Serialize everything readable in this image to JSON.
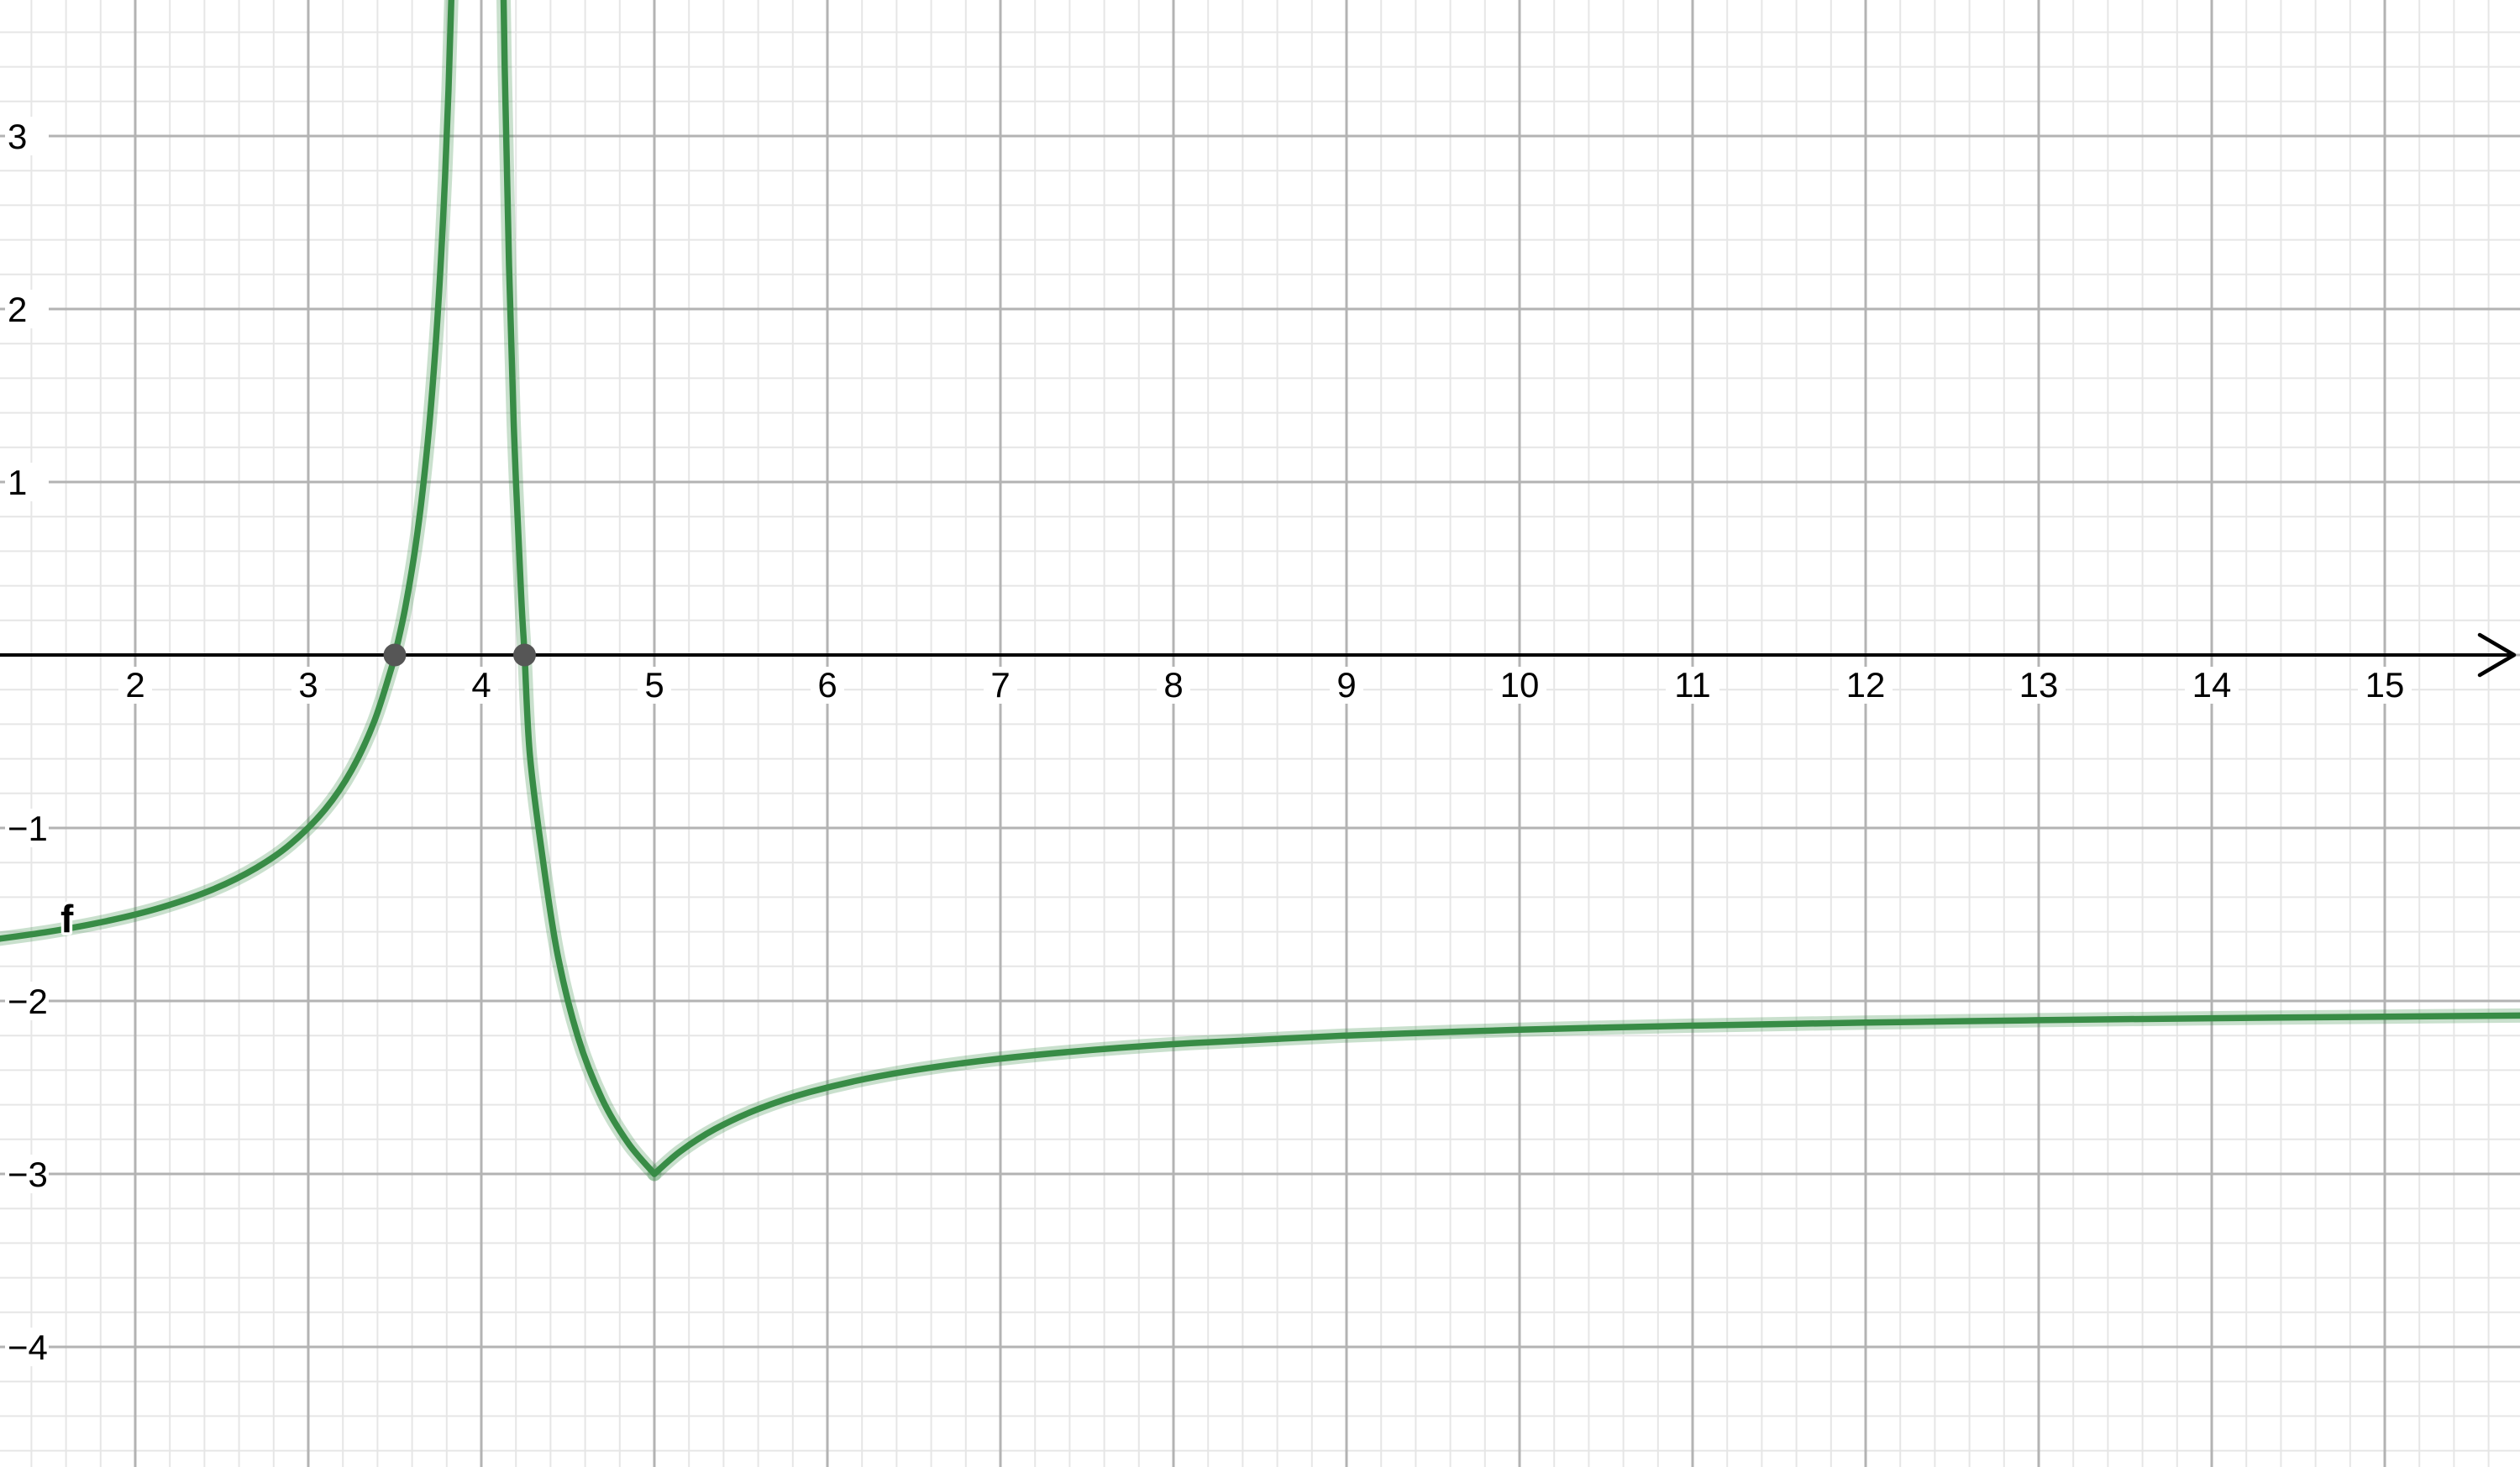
{
  "app": {
    "view_name": "graphics-view"
  },
  "chart_data": {
    "type": "line",
    "title": "",
    "function_label": "f",
    "x_range": [
      1.21845,
      15.78155
    ],
    "y_range": [
      -4.69417,
      3.78641
    ],
    "grid": {
      "minor_step": 0.2,
      "major_step": 1,
      "visible": true
    },
    "x_ticks": [
      {
        "value": 2,
        "label": "2"
      },
      {
        "value": 3,
        "label": "3"
      },
      {
        "value": 4,
        "label": "4"
      },
      {
        "value": 5,
        "label": "5"
      },
      {
        "value": 6,
        "label": "6"
      },
      {
        "value": 7,
        "label": "7"
      },
      {
        "value": 8,
        "label": "8"
      },
      {
        "value": 9,
        "label": "9"
      },
      {
        "value": 10,
        "label": "10"
      },
      {
        "value": 11,
        "label": "11"
      },
      {
        "value": 12,
        "label": "12"
      },
      {
        "value": 13,
        "label": "13"
      },
      {
        "value": 14,
        "label": "14"
      },
      {
        "value": 15,
        "label": "15"
      }
    ],
    "y_ticks": [
      {
        "value": 3,
        "label": "3"
      },
      {
        "value": 2,
        "label": "2"
      },
      {
        "value": 1,
        "label": "1"
      },
      {
        "value": -1,
        "label": "−1"
      },
      {
        "value": -2,
        "label": "−2"
      },
      {
        "value": -3,
        "label": "−3"
      },
      {
        "value": -4,
        "label": "−4"
      }
    ],
    "features": {
      "vertical_asymptote_x": 4,
      "cusp_point": [
        5,
        -3
      ],
      "horizontal_asymptote_y": -2
    },
    "marked_points": [
      {
        "x": 3.5,
        "y": 0
      },
      {
        "x": 4.25,
        "y": 0
      }
    ],
    "label_anchor": {
      "x": 1.568,
      "y": -1.602
    },
    "branches": [
      [
        [
          1.15,
          -1.6491
        ],
        [
          1.5,
          -1.6
        ],
        [
          1.85,
          -1.5349
        ],
        [
          2.15,
          -1.4595
        ],
        [
          2.45,
          -1.3548
        ],
        [
          2.7,
          -1.2308
        ],
        [
          2.9,
          -1.0909
        ],
        [
          3.1,
          -0.8889
        ],
        [
          3.25,
          -0.6667
        ],
        [
          3.38,
          -0.3871
        ],
        [
          3.48,
          -0.0769
        ],
        [
          3.5,
          0
        ],
        [
          3.56,
          0.2727
        ],
        [
          3.63,
          0.7027
        ],
        [
          3.69,
          1.2258
        ],
        [
          3.74,
          1.8462
        ],
        [
          3.78,
          2.5455
        ],
        [
          3.81,
          3.2632
        ],
        [
          3.84,
          4.25
        ]
      ],
      [
        [
          4.115,
          4.6957
        ],
        [
          4.135,
          3.4074
        ],
        [
          4.16,
          2.25
        ],
        [
          4.19,
          1.2632
        ],
        [
          4.23,
          0.3478
        ],
        [
          4.25,
          0
        ],
        [
          4.28,
          -0.5714
        ],
        [
          4.35,
          -1.1429
        ],
        [
          4.44,
          -1.7273
        ],
        [
          4.56,
          -2.2143
        ],
        [
          4.7,
          -2.5714
        ],
        [
          4.85,
          -2.8235
        ],
        [
          5,
          -3
        ]
      ],
      [
        [
          5,
          -3
        ],
        [
          5.15,
          -2.8696
        ],
        [
          5.35,
          -2.7407
        ],
        [
          5.6,
          -2.625
        ],
        [
          5.9,
          -2.5263
        ],
        [
          6.3,
          -2.4348
        ],
        [
          6.8,
          -2.3571
        ],
        [
          7.4,
          -2.2941
        ],
        [
          8.1,
          -2.2439
        ],
        [
          9,
          -2.2
        ],
        [
          10,
          -2.1667
        ],
        [
          11,
          -2.1429
        ],
        [
          12,
          -2.125
        ],
        [
          13,
          -2.1111
        ],
        [
          14,
          -2.1
        ],
        [
          15,
          -2.0909
        ],
        [
          15.85,
          -2.0838
        ]
      ]
    ],
    "colors": {
      "curve": "#388c46",
      "curve_halo": "rgba(56,140,70,0.27)",
      "point": "#565656",
      "axis": "#000000",
      "grid_major": "#b3b3b3",
      "grid_minor": "#e6e6e6",
      "tick_label": "#000000",
      "background": "#ffffff"
    },
    "style": {
      "curve_width": 7.5,
      "halo_width": 17,
      "axis_width": 4,
      "grid_major_width": 3,
      "grid_minor_width": 2,
      "point_radius": 13.5,
      "tick_font_size": 42,
      "label_font_size": 46
    }
  }
}
